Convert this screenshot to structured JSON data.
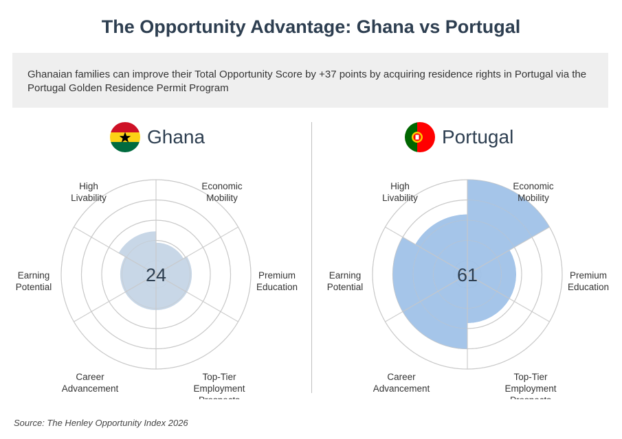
{
  "title": "The Opportunity Advantage: Ghana vs Portugal",
  "summary": "Ghanaian families can improve their Total Opportunity Score by +37 points by acquiring residence rights in Portugal via the Portugal Golden Residence Permit Program",
  "source": "Source: The Henley Opportunity Index 2026",
  "colors": {
    "ghana_fill": "#c5d5e6",
    "portugal_fill": "#a0c2e8",
    "grid": "#c8c8c8",
    "text": "#2d3e50"
  },
  "chart_data": [
    {
      "type": "radar",
      "country": "Ghana",
      "flag_icon": "ghana-flag-icon",
      "total_score": "24",
      "categories": [
        "Economic Mobility",
        "Premium Education",
        "Top-Tier Employment Prospects",
        "Career Advancement",
        "Earning Potential",
        "High Livability"
      ],
      "values": [
        22,
        27,
        27,
        27,
        27,
        36
      ],
      "ylim": [
        0,
        100
      ],
      "rings": 4
    },
    {
      "type": "radar",
      "country": "Portugal",
      "flag_icon": "portugal-flag-icon",
      "total_score": "61",
      "categories": [
        "Economic Mobility",
        "Premium Education",
        "Top-Tier Employment Prospects",
        "Career Advancement",
        "Earning Potential",
        "High Livability"
      ],
      "values": [
        100,
        43,
        43,
        75,
        75,
        57
      ],
      "ylim": [
        0,
        100
      ],
      "rings": 4
    }
  ]
}
